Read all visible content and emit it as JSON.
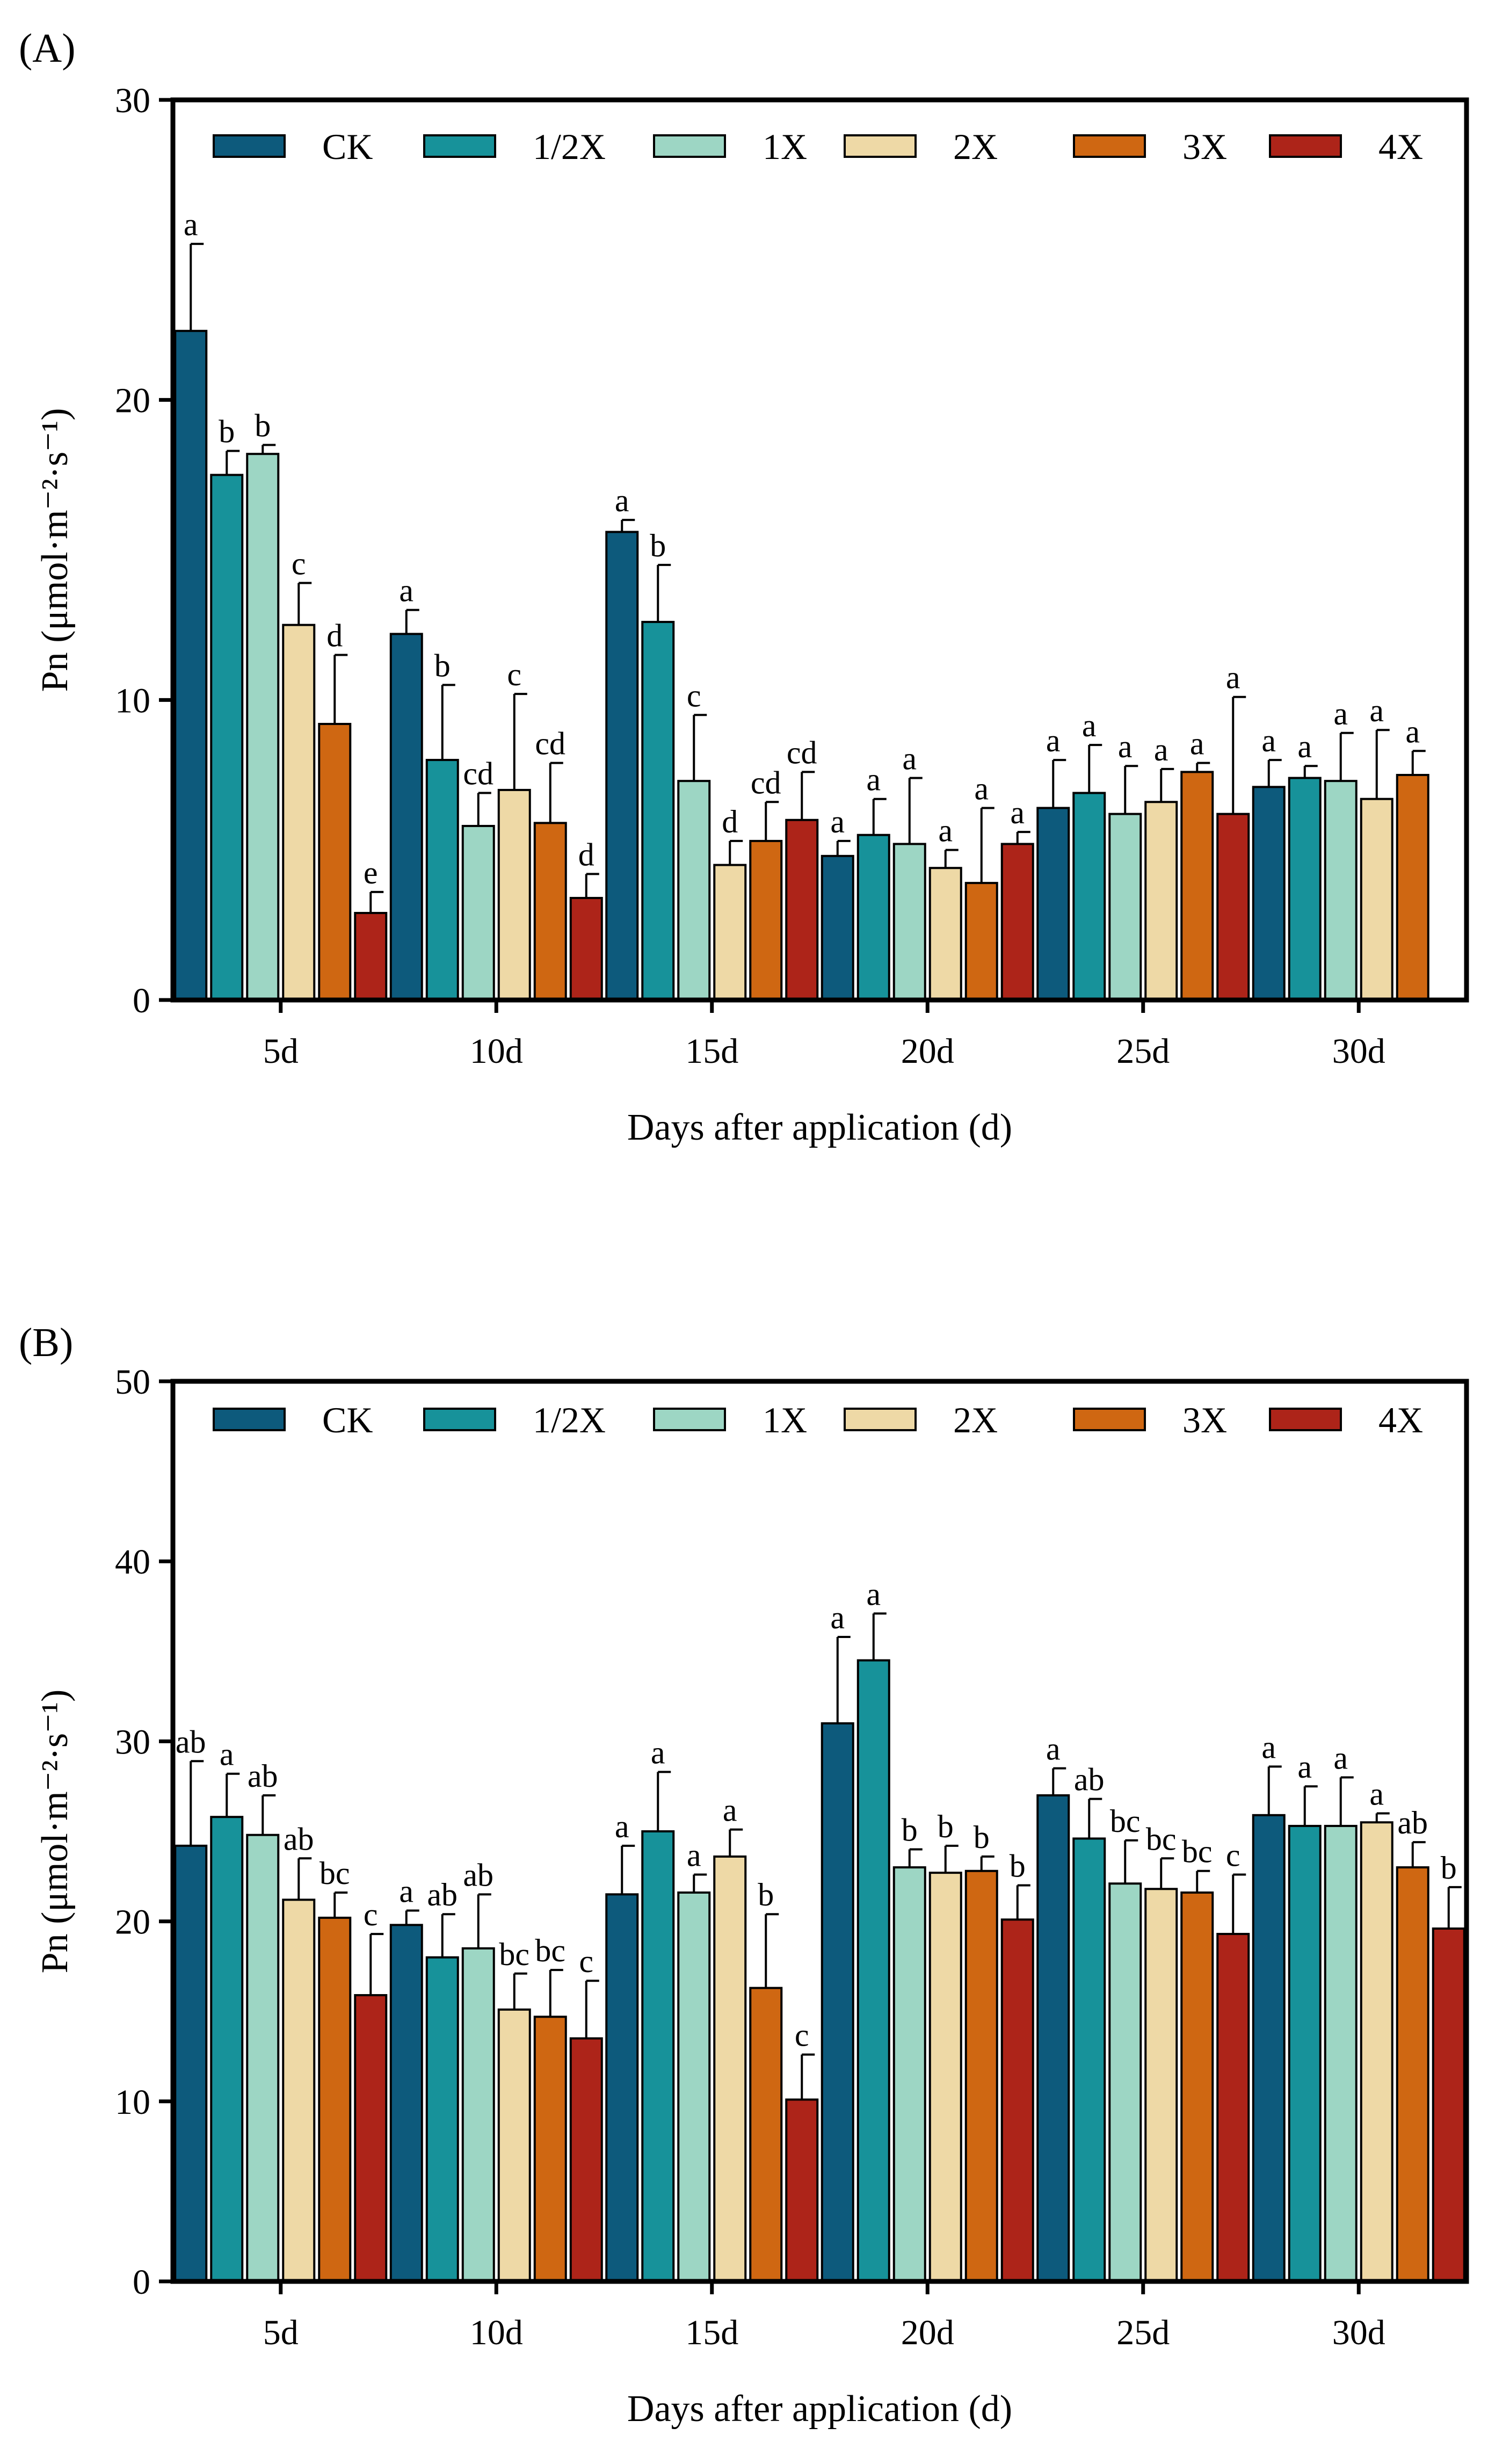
{
  "chart_data": [
    {
      "panel": "(A)",
      "type": "bar",
      "xlabel": "Days after application (d)",
      "ylabel": "Pn (μmol·m⁻²·s⁻¹)",
      "ylim": [
        0,
        30
      ],
      "yticks": [
        "0",
        "10",
        "20",
        "30"
      ],
      "categories": [
        "5d",
        "10d",
        "15d",
        "20d",
        "25d",
        "30d"
      ],
      "legend_position": "top",
      "series": [
        {
          "name": "CK",
          "color": "#0d5a7c",
          "values": [
            22.3,
            12.2,
            15.6,
            4.8,
            6.4,
            7.1
          ],
          "errors": [
            2.9,
            0.8,
            0.4,
            0.5,
            1.6,
            0.9
          ],
          "labels": [
            "a",
            "a",
            "a",
            "a",
            "a",
            "a"
          ]
        },
        {
          "name": "1/2X",
          "color": "#17929a",
          "values": [
            17.5,
            8.0,
            12.6,
            5.5,
            6.9,
            7.4
          ],
          "errors": [
            0.8,
            2.5,
            1.9,
            1.2,
            1.6,
            0.4
          ],
          "labels": [
            "b",
            "b",
            "b",
            "a",
            "a",
            "a"
          ]
        },
        {
          "name": "1X",
          "color": "#9dd6c4",
          "values": [
            18.2,
            5.8,
            7.3,
            5.2,
            6.2,
            7.3
          ],
          "errors": [
            0.3,
            1.1,
            2.2,
            2.2,
            1.6,
            1.6
          ],
          "labels": [
            "b",
            "cd",
            "c",
            "a",
            "a",
            "a"
          ]
        },
        {
          "name": "2X",
          "color": "#eed9a6",
          "values": [
            12.5,
            7.0,
            4.5,
            4.4,
            6.6,
            6.7
          ],
          "errors": [
            1.4,
            3.2,
            0.8,
            0.6,
            1.1,
            2.3
          ],
          "labels": [
            "c",
            "c",
            "d",
            "a",
            "a",
            "a"
          ]
        },
        {
          "name": "3X",
          "color": "#cf6712",
          "values": [
            9.2,
            5.9,
            5.3,
            3.9,
            7.6,
            7.5
          ],
          "errors": [
            2.3,
            2.0,
            1.3,
            2.5,
            0.3,
            0.8
          ],
          "labels": [
            "d",
            "cd",
            "cd",
            "a",
            "a",
            "a"
          ]
        },
        {
          "name": "4X",
          "color": "#ad2419",
          "values": [
            2.9,
            3.4,
            6.0,
            5.2,
            6.2,
            null
          ],
          "errors": [
            0.7,
            0.8,
            1.6,
            0.4,
            3.9,
            null
          ],
          "labels": [
            "e",
            "d",
            "cd",
            "a",
            "a",
            ""
          ]
        }
      ]
    },
    {
      "panel": "(B)",
      "type": "bar",
      "xlabel": "Days after application (d)",
      "ylabel": "Pn (μmol·m⁻²·s⁻¹)",
      "ylim": [
        0,
        50
      ],
      "yticks": [
        "0",
        "10",
        "20",
        "30",
        "40",
        "50"
      ],
      "categories": [
        "5d",
        "10d",
        "15d",
        "20d",
        "25d",
        "30d"
      ],
      "legend_position": "top",
      "series": [
        {
          "name": "CK",
          "color": "#0d5a7c",
          "values": [
            24.2,
            19.8,
            21.5,
            31.0,
            27.0,
            25.9
          ],
          "errors": [
            4.7,
            0.8,
            2.7,
            4.8,
            1.5,
            2.7
          ],
          "labels": [
            "ab",
            "a",
            "a",
            "a",
            "a",
            "a"
          ]
        },
        {
          "name": "1/2X",
          "color": "#17929a",
          "values": [
            25.8,
            18.0,
            25.0,
            34.5,
            24.6,
            25.3
          ],
          "errors": [
            2.4,
            2.4,
            3.3,
            2.6,
            2.2,
            2.2
          ],
          "labels": [
            "a",
            "ab",
            "a",
            "a",
            "ab",
            "a"
          ]
        },
        {
          "name": "1X",
          "color": "#9dd6c4",
          "values": [
            24.8,
            18.5,
            21.6,
            23.0,
            22.1,
            25.3
          ],
          "errors": [
            2.2,
            3.0,
            1.0,
            1.0,
            2.4,
            2.7
          ],
          "labels": [
            "ab",
            "ab",
            "a",
            "b",
            "bc",
            "a"
          ]
        },
        {
          "name": "2X",
          "color": "#eed9a6",
          "values": [
            21.2,
            15.1,
            23.6,
            22.7,
            21.8,
            25.5
          ],
          "errors": [
            2.3,
            2.0,
            1.5,
            1.5,
            1.7,
            0.5
          ],
          "labels": [
            "ab",
            "bc",
            "a",
            "b",
            "bc",
            "a"
          ]
        },
        {
          "name": "3X",
          "color": "#cf6712",
          "values": [
            20.2,
            14.7,
            16.3,
            22.8,
            21.6,
            23.0
          ],
          "errors": [
            1.4,
            2.6,
            4.1,
            0.8,
            1.2,
            1.4
          ],
          "labels": [
            "bc",
            "bc",
            "b",
            "b",
            "bc",
            "ab"
          ]
        },
        {
          "name": "4X",
          "color": "#ad2419",
          "values": [
            15.9,
            13.5,
            10.1,
            20.1,
            19.3,
            19.6
          ],
          "errors": [
            3.4,
            3.2,
            2.5,
            1.9,
            3.3,
            2.3
          ],
          "labels": [
            "c",
            "c",
            "c",
            "b",
            "c",
            "b"
          ]
        }
      ]
    }
  ]
}
